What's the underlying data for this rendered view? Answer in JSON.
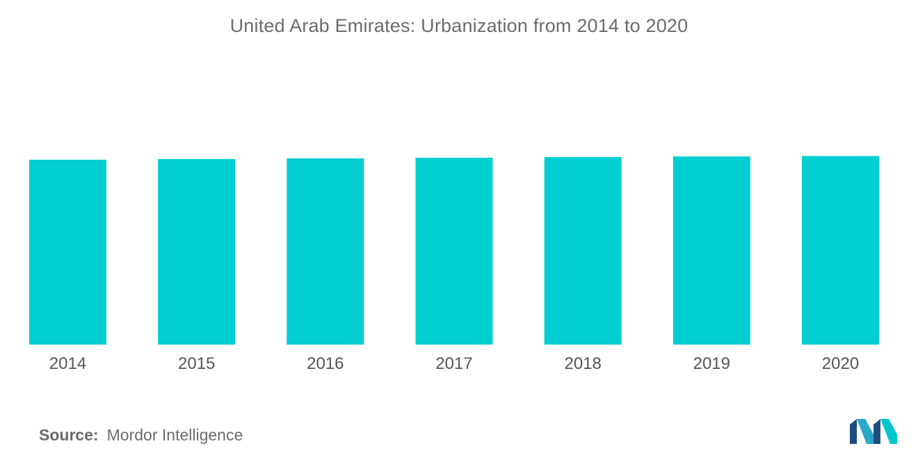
{
  "chart_data": {
    "type": "bar",
    "title": "United Arab Emirates: Urbanization from 2014 to 2020",
    "categories": [
      "2014",
      "2015",
      "2016",
      "2017",
      "2018",
      "2019",
      "2020"
    ],
    "values": [
      85.3,
      85.6,
      85.9,
      86.2,
      86.5,
      86.8,
      87.0
    ],
    "xlabel": "",
    "ylabel": "",
    "ylim": [
      0,
      100
    ],
    "grid": false,
    "bar_color": "#00ced1"
  },
  "source": {
    "label": "Source:",
    "text": "Mordor Intelligence"
  },
  "logo": {
    "icon": "mordor-intelligence-logo",
    "colors": [
      "#1c4e80",
      "#2aa7c9",
      "#00c7cf"
    ]
  }
}
